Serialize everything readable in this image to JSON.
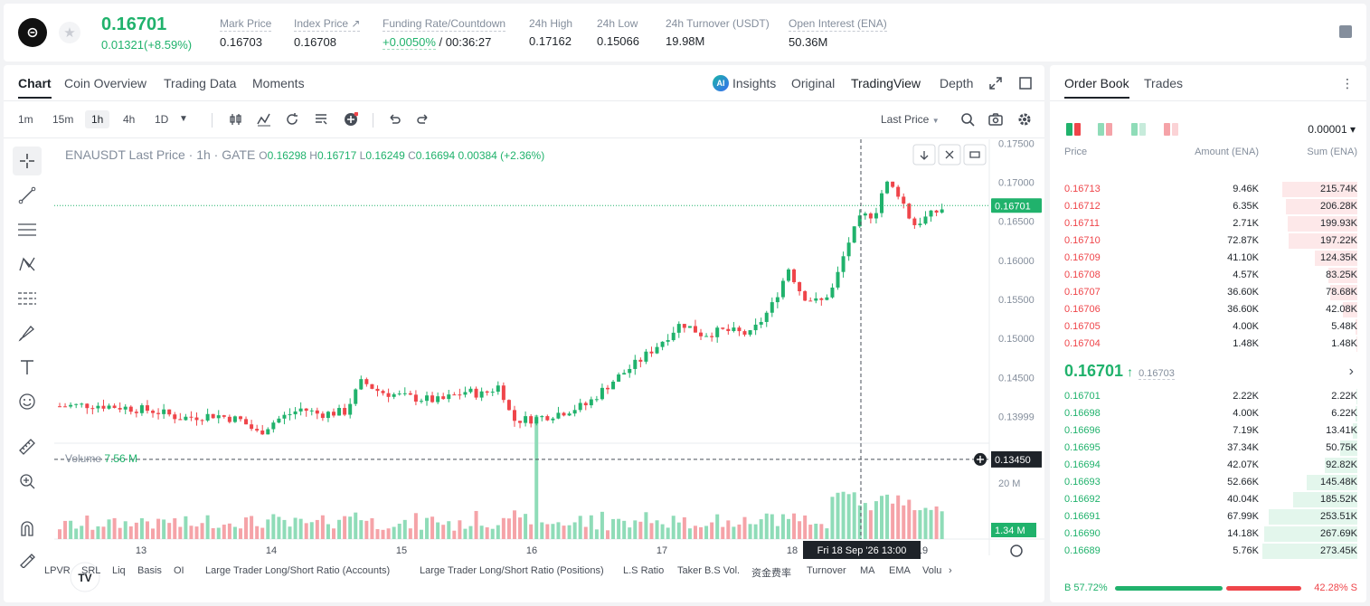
{
  "ticker": {
    "logo_glyph": "⊝",
    "last_price": "0.16701",
    "change": "0.01321(+8.59%)",
    "stats": [
      {
        "label": "Mark Price",
        "value": "0.16703"
      },
      {
        "label": "Index Price ↗",
        "value": "0.16708"
      },
      {
        "label": "Funding Rate/Countdown",
        "value_up": "+0.0050%",
        "value_rest": " / 00:36:27"
      },
      {
        "label": "24h High",
        "value": "0.17162"
      },
      {
        "label": "24h Low",
        "value": "0.15066"
      },
      {
        "label": "24h Turnover (USDT)",
        "value": "19.98M"
      },
      {
        "label": "Open Interest (ENA)",
        "value": "50.36M"
      }
    ]
  },
  "chart_tabs": [
    "Chart",
    "Coin Overview",
    "Trading Data",
    "Moments"
  ],
  "view_tabs": {
    "ai": "AI",
    "insights": "Insights",
    "original": "Original",
    "tradingview": "TradingView",
    "depth": "Depth"
  },
  "intervals": [
    "1m",
    "15m",
    "1h",
    "4h",
    "1D"
  ],
  "price_type": "Last Price",
  "legend": {
    "symbol": "ENAUSDT Last Price · 1h · GATE",
    "o_label": "O",
    "o": "0.16298",
    "h_label": "H",
    "h": "0.16717",
    "l_label": "L",
    "l": "0.16249",
    "c_label": "C",
    "c": "0.16694",
    "chg": "0.00384 (+2.36%)"
  },
  "volume_label": "Volume",
  "volume_value": "7.56 M",
  "tv_logo": "TV",
  "chart_data": {
    "type": "candlestick",
    "y_ticks": [
      "0.17500",
      "0.17000",
      "0.16500",
      "0.16000",
      "0.15500",
      "0.15000",
      "0.14500",
      "0.13999"
    ],
    "y_range": [
      0.1375,
      0.1755
    ],
    "x_ticks": [
      "13",
      "14",
      "15",
      "16",
      "17",
      "18",
      "19"
    ],
    "current_price_tag": "0.16701",
    "crosshair_price_tag": "0.13450",
    "crosshair_time": "Fri 18 Sep '26   13:00",
    "volume_tick": "20 M",
    "volume_tag": "1.34 M",
    "colors": {
      "up": "#20b26c",
      "down": "#ef454a",
      "up_vol": "#8fdcb8",
      "down_vol": "#f5a3a8"
    }
  },
  "indicators": [
    "LPVR",
    "SRL",
    "Liq",
    "Basis",
    "OI",
    "Large Trader Long/Short Ratio (Accounts)",
    "Large Trader Long/Short Ratio (Positions)",
    "L.S Ratio",
    "Taker B.S Vol.",
    "资金费率",
    "Turnover",
    "MA",
    "EMA",
    "Volu",
    "›"
  ],
  "orderbook": {
    "tabs": [
      "Order Book",
      "Trades"
    ],
    "precision": "0.00001 ▾",
    "headers": {
      "price": "Price",
      "amount": "Amount (ENA)",
      "sum": "Sum (ENA)"
    },
    "asks": [
      {
        "price": "0.16713",
        "amount": "9.46K",
        "sum": "215.74K",
        "depth": 0.79
      },
      {
        "price": "0.16712",
        "amount": "6.35K",
        "sum": "206.28K",
        "depth": 0.75
      },
      {
        "price": "0.16711",
        "amount": "2.71K",
        "sum": "199.93K",
        "depth": 0.73
      },
      {
        "price": "0.16710",
        "amount": "72.87K",
        "sum": "197.22K",
        "depth": 0.72
      },
      {
        "price": "0.16709",
        "amount": "41.10K",
        "sum": "124.35K",
        "depth": 0.45
      },
      {
        "price": "0.16708",
        "amount": "4.57K",
        "sum": "83.25K",
        "depth": 0.3
      },
      {
        "price": "0.16707",
        "amount": "36.60K",
        "sum": "78.68K",
        "depth": 0.29
      },
      {
        "price": "0.16706",
        "amount": "36.60K",
        "sum": "42.08K",
        "depth": 0.15
      },
      {
        "price": "0.16705",
        "amount": "4.00K",
        "sum": "5.48K",
        "depth": 0.02
      },
      {
        "price": "0.16704",
        "amount": "1.48K",
        "sum": "1.48K",
        "depth": 0.01
      }
    ],
    "mid_price": "0.16701",
    "mid_arrow": "↑",
    "mid_mark": "0.16703",
    "bids": [
      {
        "price": "0.16701",
        "amount": "2.22K",
        "sum": "2.22K",
        "depth": 0.01
      },
      {
        "price": "0.16698",
        "amount": "4.00K",
        "sum": "6.22K",
        "depth": 0.02
      },
      {
        "price": "0.16696",
        "amount": "7.19K",
        "sum": "13.41K",
        "depth": 0.05
      },
      {
        "price": "0.16695",
        "amount": "37.34K",
        "sum": "50.75K",
        "depth": 0.18
      },
      {
        "price": "0.16694",
        "amount": "42.07K",
        "sum": "92.82K",
        "depth": 0.34
      },
      {
        "price": "0.16693",
        "amount": "52.66K",
        "sum": "145.48K",
        "depth": 0.53
      },
      {
        "price": "0.16692",
        "amount": "40.04K",
        "sum": "185.52K",
        "depth": 0.68
      },
      {
        "price": "0.16691",
        "amount": "67.99K",
        "sum": "253.51K",
        "depth": 0.93
      },
      {
        "price": "0.16690",
        "amount": "14.18K",
        "sum": "267.69K",
        "depth": 0.98
      },
      {
        "price": "0.16689",
        "amount": "5.76K",
        "sum": "273.45K",
        "depth": 1.0
      }
    ],
    "buy_ratio": "B 57.72%",
    "sell_ratio": "42.28% S",
    "buy_fraction": 0.5772
  }
}
